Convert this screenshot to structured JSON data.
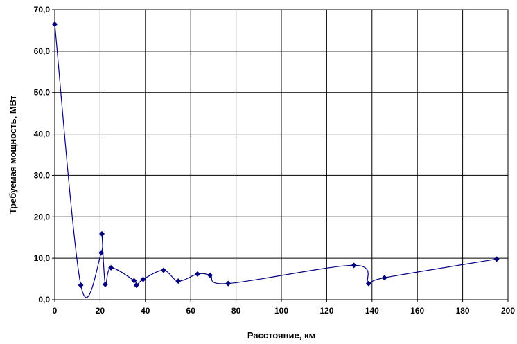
{
  "chart_data": {
    "type": "line",
    "xlabel": "Расстояние, км",
    "ylabel": "Требуемая мощность, МВт",
    "xlim": [
      0,
      200
    ],
    "ylim": [
      0,
      70
    ],
    "x_ticks": [
      "0",
      "20",
      "40",
      "60",
      "80",
      "100",
      "120",
      "140",
      "160",
      "180",
      "200"
    ],
    "y_ticks": [
      "0,0",
      "10,0",
      "20,0",
      "30,0",
      "40,0",
      "50,0",
      "60,0",
      "70,0"
    ],
    "grid": true,
    "smooth": true,
    "colors": {
      "line": "#000080",
      "marker": "#000080",
      "grid": "#000000"
    },
    "series": [
      {
        "x": [
          0,
          11.5,
          20.5,
          20.8,
          22.3,
          24.8,
          35,
          36,
          39,
          48,
          54.5,
          63,
          68.5,
          76.5,
          132,
          138.5,
          145.5,
          195
        ],
        "y": [
          66.5,
          3.5,
          11.3,
          15.9,
          3.7,
          7.7,
          4.6,
          3.5,
          4.9,
          7.1,
          4.5,
          6.2,
          5.9,
          3.9,
          8.3,
          3.9,
          5.3,
          9.8
        ]
      }
    ]
  }
}
